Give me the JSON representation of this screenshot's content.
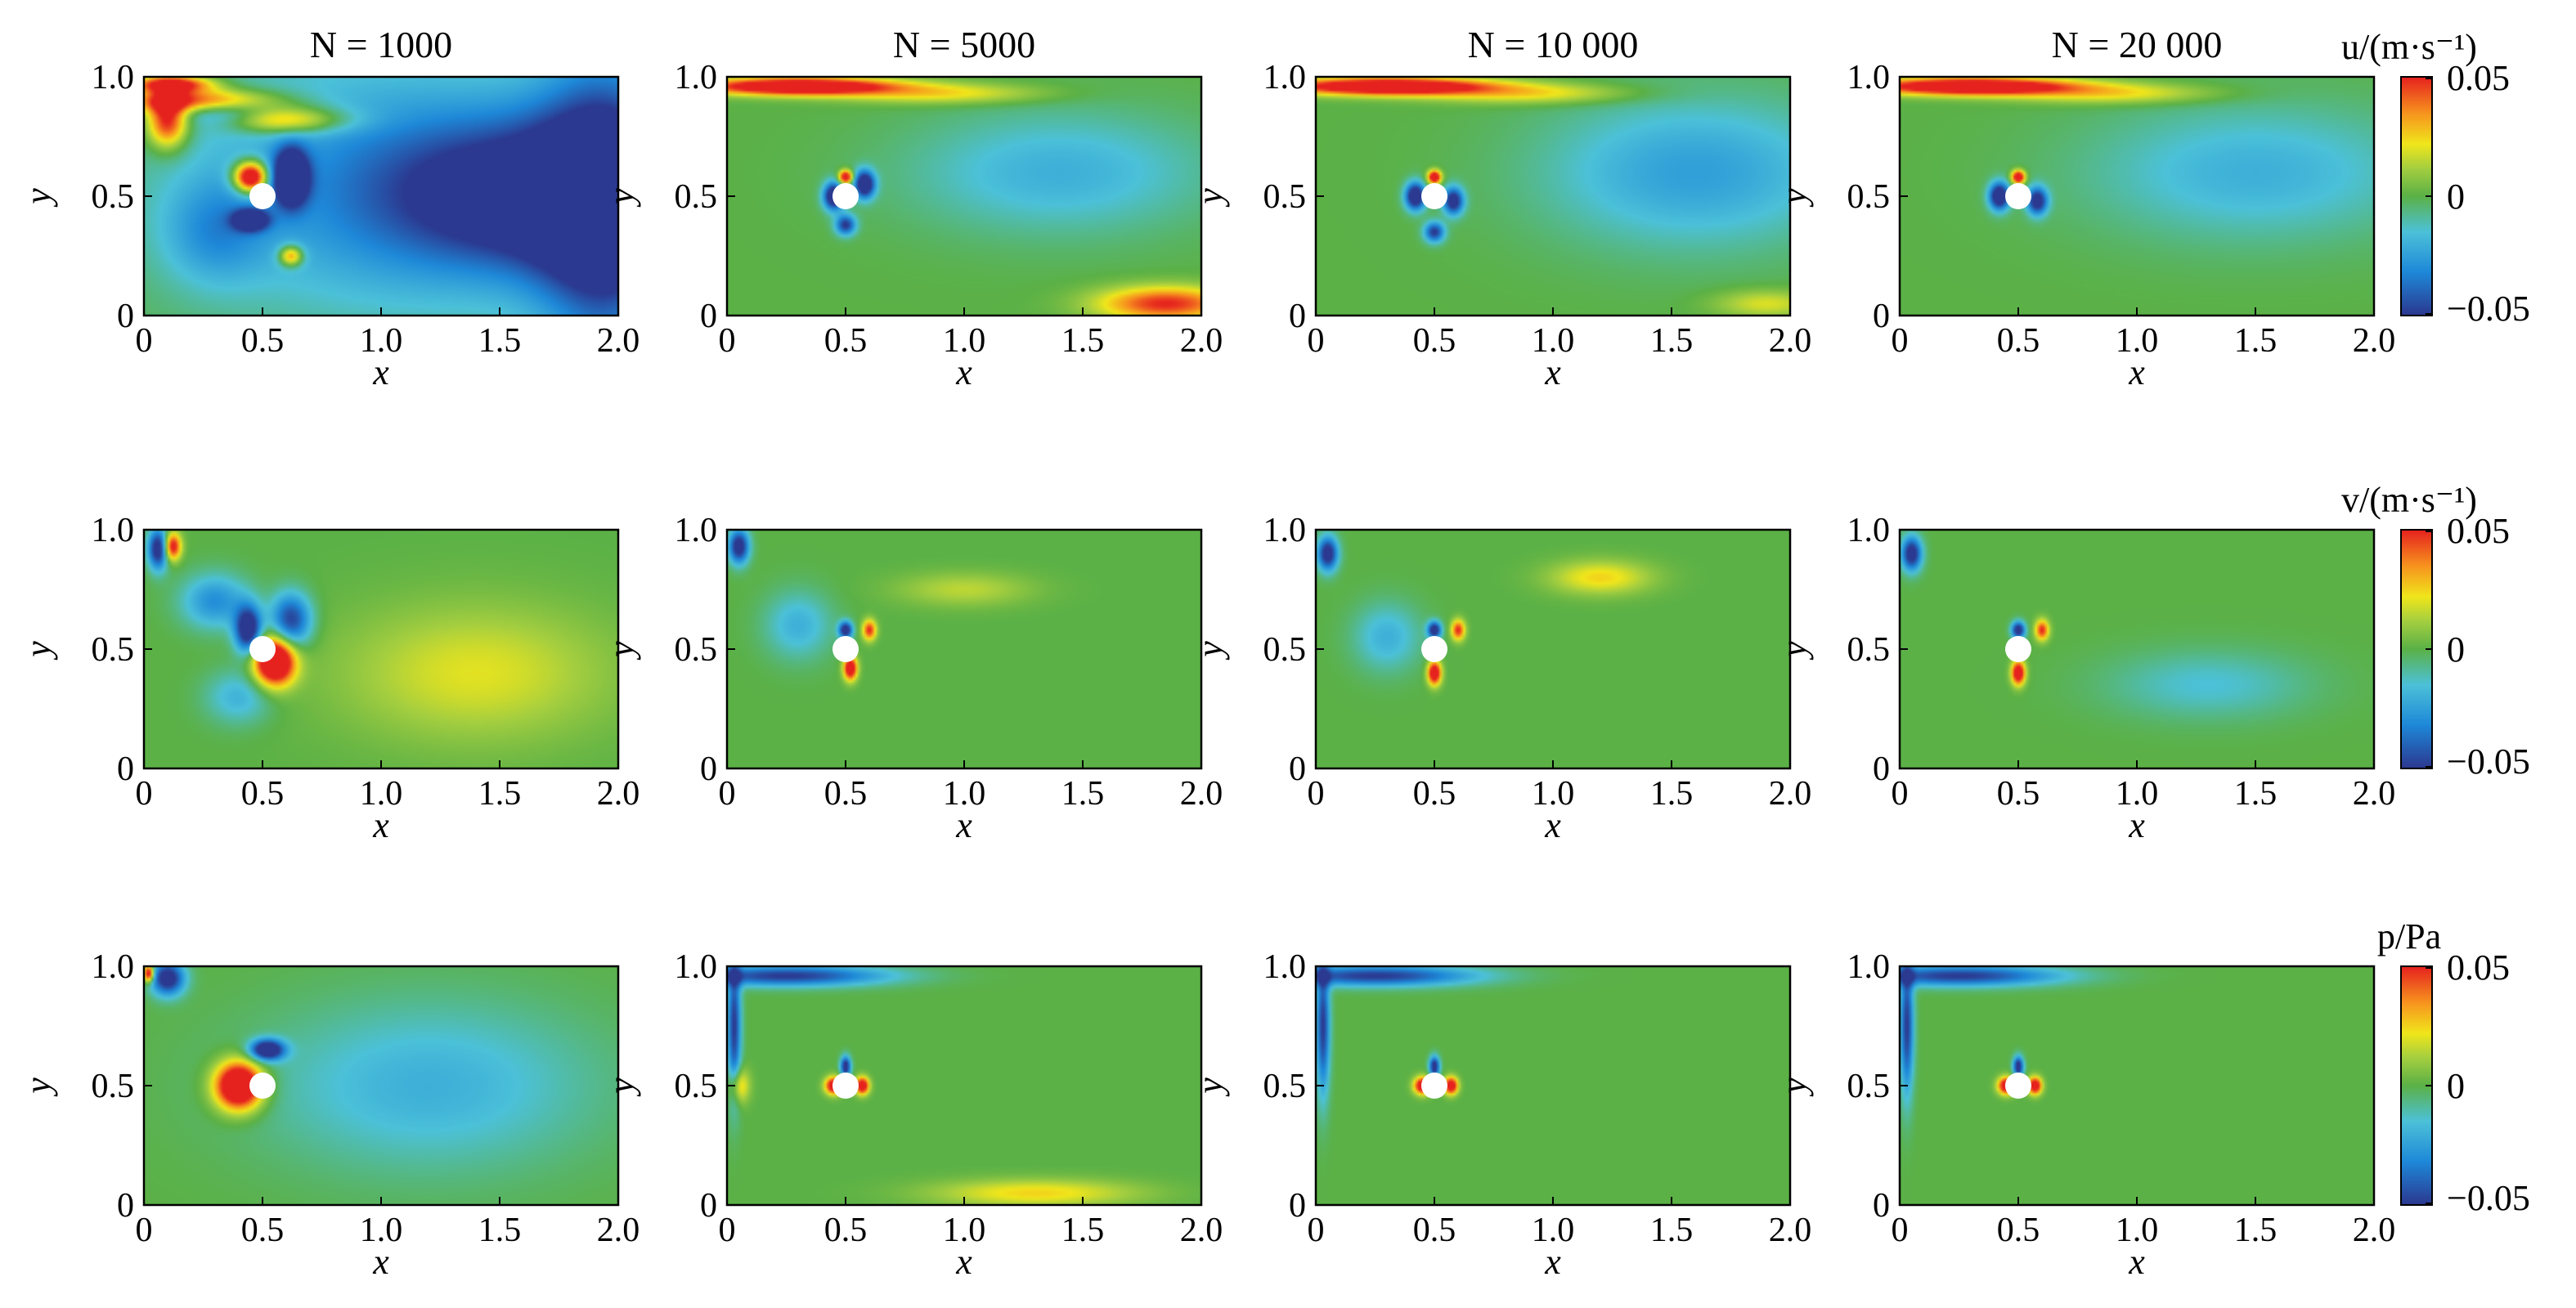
{
  "figure": {
    "column_titles": [
      "N = 1000",
      "N = 5000",
      "N = 10 000",
      "N = 20 000"
    ]
  },
  "chart_data": {
    "type": "heatmap",
    "columns": [
      {
        "title": "N = 1000",
        "N": 1000
      },
      {
        "title": "N = 5000",
        "N": 5000
      },
      {
        "title": "N = 10 000",
        "N": 10000
      },
      {
        "title": "N = 20 000",
        "N": 20000
      }
    ],
    "rows": [
      {
        "field": "u",
        "colorbar_title": "u/(m·s⁻¹)",
        "clim": [
          -0.05,
          0.05
        ],
        "colorbar_ticks": [
          "0.05",
          "0",
          "−0.05"
        ]
      },
      {
        "field": "v",
        "colorbar_title": "v/(m·s⁻¹)",
        "clim": [
          -0.05,
          0.05
        ],
        "colorbar_ticks": [
          "0.05",
          "0",
          "−0.05"
        ]
      },
      {
        "field": "p",
        "colorbar_title": "p/Pa",
        "clim": [
          -0.05,
          0.05
        ],
        "colorbar_ticks": [
          "0.05",
          "0",
          "−0.05"
        ]
      }
    ],
    "xlabel": "x",
    "ylabel": "y",
    "xlim": [
      0,
      2.0
    ],
    "ylim": [
      0,
      1.0
    ],
    "xticks": [
      "0",
      "0.5",
      "1.0",
      "1.5",
      "2.0"
    ],
    "yticks": [
      "0",
      "0.5",
      "1.0"
    ],
    "obstacle": {
      "shape": "circle",
      "center": [
        0.5,
        0.5
      ],
      "radius": 0.05
    },
    "colormap_stops": [
      "#2b3990",
      "#1e88d8",
      "#4cc1d8",
      "#5bb146",
      "#a6cf3f",
      "#f0e61b",
      "#f7931e",
      "#e6221e"
    ],
    "background_value": 0.0,
    "features": {
      "u": [
        [
          {
            "x": 1.7,
            "y": 0.5,
            "sx": 0.45,
            "sy": 0.22,
            "a": -0.055
          },
          {
            "x": 1.95,
            "y": 0.45,
            "sx": 0.2,
            "sy": 0.45,
            "a": -0.05
          },
          {
            "x": 1.0,
            "y": 0.55,
            "sx": 0.65,
            "sy": 0.4,
            "a": -0.028
          },
          {
            "x": 0.45,
            "y": 0.58,
            "sx": 0.05,
            "sy": 0.045,
            "a": 0.09
          },
          {
            "x": 0.62,
            "y": 0.58,
            "sx": 0.05,
            "sy": 0.08,
            "a": -0.075
          },
          {
            "x": 0.45,
            "y": 0.4,
            "sx": 0.05,
            "sy": 0.03,
            "a": -0.06
          },
          {
            "x": 0.62,
            "y": 0.25,
            "sx": 0.035,
            "sy": 0.03,
            "a": 0.05
          },
          {
            "x": 0.25,
            "y": 0.9,
            "sx": 0.22,
            "sy": 0.035,
            "a": 0.06
          },
          {
            "x": 0.1,
            "y": 0.82,
            "sx": 0.06,
            "sy": 0.08,
            "a": 0.06
          },
          {
            "x": 0.55,
            "y": 0.82,
            "sx": 0.2,
            "sy": 0.04,
            "a": 0.05
          },
          {
            "x": 0.12,
            "y": 0.97,
            "sx": 0.12,
            "sy": 0.025,
            "a": 0.06
          },
          {
            "x": 0.35,
            "y": 0.85,
            "sx": 0.15,
            "sy": 0.05,
            "a": -0.035
          },
          {
            "x": 0.3,
            "y": 0.35,
            "sx": 0.15,
            "sy": 0.15,
            "a": -0.02
          }
        ],
        [
          {
            "x": 0.3,
            "y": 0.96,
            "sx": 0.28,
            "sy": 0.025,
            "a": 0.08
          },
          {
            "x": 0.9,
            "y": 0.93,
            "sx": 0.3,
            "sy": 0.03,
            "a": 0.025
          },
          {
            "x": 1.85,
            "y": 0.05,
            "sx": 0.2,
            "sy": 0.05,
            "a": 0.05
          },
          {
            "x": 1.4,
            "y": 0.6,
            "sx": 0.45,
            "sy": 0.18,
            "a": -0.02
          },
          {
            "x": 0.45,
            "y": 0.5,
            "sx": 0.03,
            "sy": 0.04,
            "a": -0.07
          },
          {
            "x": 0.58,
            "y": 0.55,
            "sx": 0.03,
            "sy": 0.04,
            "a": -0.07
          },
          {
            "x": 0.5,
            "y": 0.58,
            "sx": 0.02,
            "sy": 0.02,
            "a": 0.07
          },
          {
            "x": 0.5,
            "y": 0.38,
            "sx": 0.03,
            "sy": 0.03,
            "a": -0.05
          }
        ],
        [
          {
            "x": 0.3,
            "y": 0.96,
            "sx": 0.3,
            "sy": 0.025,
            "a": 0.08
          },
          {
            "x": 0.9,
            "y": 0.93,
            "sx": 0.3,
            "sy": 0.03,
            "a": 0.025
          },
          {
            "x": 1.6,
            "y": 0.6,
            "sx": 0.45,
            "sy": 0.22,
            "a": -0.025
          },
          {
            "x": 1.9,
            "y": 0.05,
            "sx": 0.15,
            "sy": 0.04,
            "a": 0.02
          },
          {
            "x": 0.42,
            "y": 0.5,
            "sx": 0.03,
            "sy": 0.04,
            "a": -0.07
          },
          {
            "x": 0.58,
            "y": 0.48,
            "sx": 0.03,
            "sy": 0.04,
            "a": -0.06
          },
          {
            "x": 0.5,
            "y": 0.58,
            "sx": 0.02,
            "sy": 0.02,
            "a": 0.07
          },
          {
            "x": 0.5,
            "y": 0.35,
            "sx": 0.03,
            "sy": 0.03,
            "a": -0.05
          }
        ],
        [
          {
            "x": 0.3,
            "y": 0.96,
            "sx": 0.3,
            "sy": 0.025,
            "a": 0.08
          },
          {
            "x": 0.9,
            "y": 0.93,
            "sx": 0.3,
            "sy": 0.03,
            "a": 0.025
          },
          {
            "x": 1.5,
            "y": 0.6,
            "sx": 0.5,
            "sy": 0.2,
            "a": -0.02
          },
          {
            "x": 0.42,
            "y": 0.5,
            "sx": 0.03,
            "sy": 0.04,
            "a": -0.07
          },
          {
            "x": 0.58,
            "y": 0.48,
            "sx": 0.03,
            "sy": 0.04,
            "a": -0.06
          },
          {
            "x": 0.5,
            "y": 0.58,
            "sx": 0.02,
            "sy": 0.02,
            "a": 0.07
          }
        ]
      ],
      "v": [
        [
          {
            "x": 1.4,
            "y": 0.4,
            "sx": 0.4,
            "sy": 0.2,
            "a": 0.02
          },
          {
            "x": 0.55,
            "y": 0.45,
            "sx": 0.06,
            "sy": 0.07,
            "a": 0.09
          },
          {
            "x": 0.44,
            "y": 0.58,
            "sx": 0.04,
            "sy": 0.07,
            "a": -0.065
          },
          {
            "x": 0.62,
            "y": 0.62,
            "sx": 0.06,
            "sy": 0.08,
            "a": -0.05
          },
          {
            "x": 0.06,
            "y": 0.92,
            "sx": 0.03,
            "sy": 0.06,
            "a": -0.06
          },
          {
            "x": 0.12,
            "y": 0.93,
            "sx": 0.025,
            "sy": 0.04,
            "a": 0.06
          },
          {
            "x": 0.3,
            "y": 0.7,
            "sx": 0.1,
            "sy": 0.08,
            "a": -0.03
          },
          {
            "x": 0.4,
            "y": 0.3,
            "sx": 0.1,
            "sy": 0.08,
            "a": -0.02
          }
        ],
        [
          {
            "x": 0.05,
            "y": 0.93,
            "sx": 0.03,
            "sy": 0.05,
            "a": -0.06
          },
          {
            "x": 0.52,
            "y": 0.42,
            "sx": 0.02,
            "sy": 0.035,
            "a": 0.07
          },
          {
            "x": 0.5,
            "y": 0.58,
            "sx": 0.02,
            "sy": 0.025,
            "a": -0.06
          },
          {
            "x": 0.6,
            "y": 0.58,
            "sx": 0.02,
            "sy": 0.03,
            "a": 0.05
          },
          {
            "x": 1.0,
            "y": 0.75,
            "sx": 0.2,
            "sy": 0.05,
            "a": 0.015
          },
          {
            "x": 0.3,
            "y": 0.6,
            "sx": 0.1,
            "sy": 0.1,
            "a": -0.02
          }
        ],
        [
          {
            "x": 0.05,
            "y": 0.9,
            "sx": 0.03,
            "sy": 0.05,
            "a": -0.06
          },
          {
            "x": 0.5,
            "y": 0.4,
            "sx": 0.02,
            "sy": 0.035,
            "a": 0.07
          },
          {
            "x": 0.5,
            "y": 0.58,
            "sx": 0.02,
            "sy": 0.025,
            "a": -0.06
          },
          {
            "x": 0.6,
            "y": 0.58,
            "sx": 0.02,
            "sy": 0.03,
            "a": 0.05
          },
          {
            "x": 1.2,
            "y": 0.8,
            "sx": 0.15,
            "sy": 0.05,
            "a": 0.025
          },
          {
            "x": 0.3,
            "y": 0.55,
            "sx": 0.1,
            "sy": 0.1,
            "a": -0.02
          }
        ],
        [
          {
            "x": 0.05,
            "y": 0.9,
            "sx": 0.03,
            "sy": 0.05,
            "a": -0.06
          },
          {
            "x": 0.5,
            "y": 0.4,
            "sx": 0.02,
            "sy": 0.035,
            "a": 0.07
          },
          {
            "x": 0.5,
            "y": 0.58,
            "sx": 0.02,
            "sy": 0.025,
            "a": -0.06
          },
          {
            "x": 0.6,
            "y": 0.58,
            "sx": 0.02,
            "sy": 0.03,
            "a": 0.05
          },
          {
            "x": 1.3,
            "y": 0.35,
            "sx": 0.3,
            "sy": 0.1,
            "a": -0.015
          }
        ]
      ],
      "p": [
        [
          {
            "x": 1.2,
            "y": 0.5,
            "sx": 0.5,
            "sy": 0.25,
            "a": -0.02
          },
          {
            "x": 0.4,
            "y": 0.5,
            "sx": 0.07,
            "sy": 0.07,
            "a": 0.09
          },
          {
            "x": 0.52,
            "y": 0.65,
            "sx": 0.05,
            "sy": 0.03,
            "a": -0.07
          },
          {
            "x": 0.1,
            "y": 0.95,
            "sx": 0.05,
            "sy": 0.05,
            "a": -0.06
          },
          {
            "x": 0.02,
            "y": 0.97,
            "sx": 0.015,
            "sy": 0.025,
            "a": 0.07
          }
        ],
        [
          {
            "x": 0.25,
            "y": 0.96,
            "sx": 0.3,
            "sy": 0.03,
            "a": -0.05
          },
          {
            "x": 0.03,
            "y": 0.75,
            "sx": 0.02,
            "sy": 0.2,
            "a": -0.05
          },
          {
            "x": 0.45,
            "y": 0.5,
            "sx": 0.025,
            "sy": 0.025,
            "a": 0.07
          },
          {
            "x": 0.57,
            "y": 0.5,
            "sx": 0.02,
            "sy": 0.025,
            "a": 0.07
          },
          {
            "x": 0.5,
            "y": 0.58,
            "sx": 0.015,
            "sy": 0.03,
            "a": -0.06
          },
          {
            "x": 1.3,
            "y": 0.05,
            "sx": 0.3,
            "sy": 0.04,
            "a": 0.025
          },
          {
            "x": 0.05,
            "y": 0.5,
            "sx": 0.03,
            "sy": 0.05,
            "a": 0.03
          }
        ],
        [
          {
            "x": 0.25,
            "y": 0.96,
            "sx": 0.3,
            "sy": 0.03,
            "a": -0.05
          },
          {
            "x": 0.03,
            "y": 0.75,
            "sx": 0.02,
            "sy": 0.2,
            "a": -0.05
          },
          {
            "x": 0.45,
            "y": 0.5,
            "sx": 0.025,
            "sy": 0.025,
            "a": 0.07
          },
          {
            "x": 0.57,
            "y": 0.5,
            "sx": 0.02,
            "sy": 0.025,
            "a": 0.07
          },
          {
            "x": 0.5,
            "y": 0.58,
            "sx": 0.015,
            "sy": 0.03,
            "a": -0.06
          }
        ],
        [
          {
            "x": 0.25,
            "y": 0.96,
            "sx": 0.3,
            "sy": 0.03,
            "a": -0.05
          },
          {
            "x": 0.03,
            "y": 0.75,
            "sx": 0.02,
            "sy": 0.2,
            "a": -0.05
          },
          {
            "x": 0.45,
            "y": 0.5,
            "sx": 0.025,
            "sy": 0.025,
            "a": 0.07
          },
          {
            "x": 0.57,
            "y": 0.5,
            "sx": 0.02,
            "sy": 0.025,
            "a": 0.07
          },
          {
            "x": 0.5,
            "y": 0.58,
            "sx": 0.015,
            "sy": 0.03,
            "a": -0.06
          }
        ]
      ]
    }
  }
}
